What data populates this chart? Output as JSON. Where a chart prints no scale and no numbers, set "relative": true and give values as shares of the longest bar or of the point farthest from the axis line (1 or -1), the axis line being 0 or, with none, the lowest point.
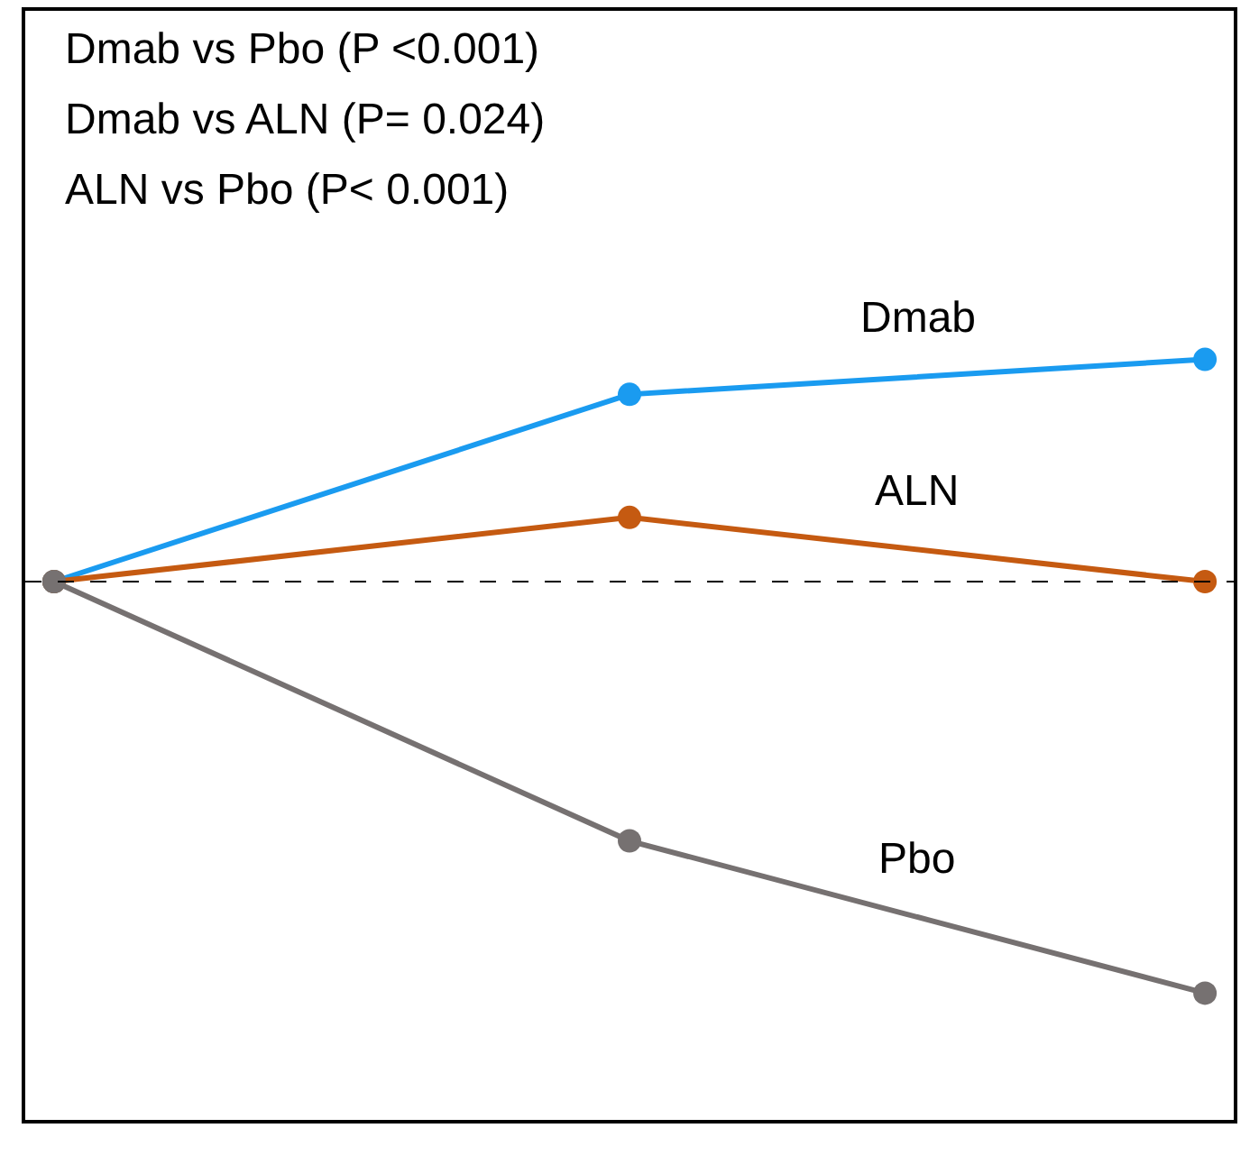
{
  "chart_data": {
    "type": "line",
    "relative": true,
    "categories": [
      null,
      null,
      null
    ],
    "series": [
      {
        "name": "Dmab",
        "color": "#1a9bf0",
        "values": [
          0,
          0.455,
          0.54
        ]
      },
      {
        "name": "ALN",
        "color": "#c55a11",
        "values": [
          0,
          0.156,
          0
        ]
      },
      {
        "name": "Pbo",
        "color": "#767171",
        "values": [
          0,
          -0.63,
          -1
        ]
      }
    ],
    "annotations": [
      "Dmab vs Pbo (P <0.001)",
      "Dmab vs ALN (P= 0.024)",
      "ALN vs Pbo (P< 0.001)"
    ],
    "ref_lines": [
      {
        "axis": "y",
        "value": 0,
        "color": "#000000",
        "line_style": "dashed"
      }
    ],
    "marker": "circle",
    "line_style": "solid",
    "legend": false
  }
}
